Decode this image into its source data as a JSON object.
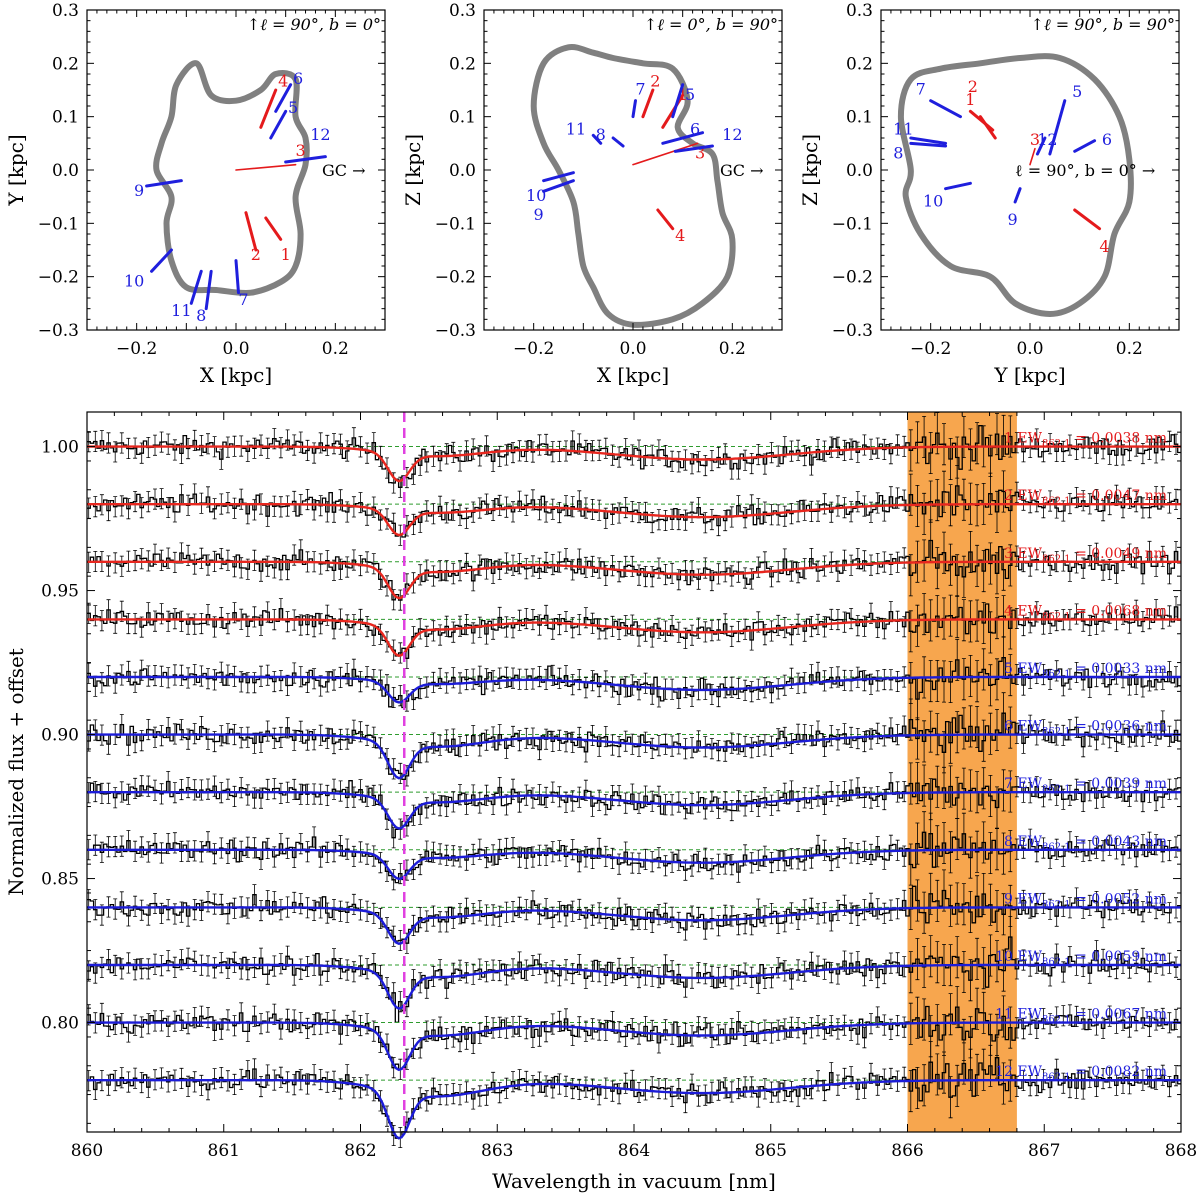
{
  "colors": {
    "red": "#e41a1c",
    "blue": "#1f1fdd",
    "contour": "#808080",
    "model_red": "#e8261e",
    "model_blue": "#1c1cd8",
    "baseline": "#2e9b2e",
    "dashed_center": "#e040e0",
    "highlight": "#f7a64e",
    "data": "#000000"
  },
  "chart_data": [
    {
      "type": "scatter",
      "panel": "top-left",
      "xlabel": "X [kpc]",
      "ylabel": "Y [kpc]",
      "xlim": [
        -0.3,
        0.3
      ],
      "ylim": [
        -0.3,
        0.3
      ],
      "xticks": [
        "−0.2",
        "0.0",
        "0.2"
      ],
      "yticks": [
        "−0.3",
        "−0.2",
        "−0.1",
        "0.0",
        "0.1",
        "0.2",
        "0.3"
      ],
      "corner_label": "↑ℓ = 90°, b = 0°",
      "arrow_label": "GC →",
      "contour": [
        [
          -0.13,
          0.1
        ],
        [
          -0.12,
          0.16
        ],
        [
          -0.08,
          0.2
        ],
        [
          -0.05,
          0.14
        ],
        [
          0.0,
          0.13
        ],
        [
          0.05,
          0.15
        ],
        [
          0.08,
          0.18
        ],
        [
          0.12,
          0.17
        ],
        [
          0.12,
          0.1
        ],
        [
          0.14,
          0.06
        ],
        [
          0.14,
          0.01
        ],
        [
          0.12,
          -0.05
        ],
        [
          0.13,
          -0.12
        ],
        [
          0.12,
          -0.18
        ],
        [
          0.09,
          -0.21
        ],
        [
          0.03,
          -0.23
        ],
        [
          -0.04,
          -0.225
        ],
        [
          -0.1,
          -0.22
        ],
        [
          -0.13,
          -0.17
        ],
        [
          -0.14,
          -0.1
        ],
        [
          -0.13,
          -0.05
        ],
        [
          -0.16,
          0.0
        ],
        [
          -0.15,
          0.05
        ]
      ],
      "sightlines": [
        {
          "label": "1",
          "color": "red",
          "x": [
            0.06,
            0.09
          ],
          "y": [
            -0.09,
            -0.13
          ],
          "lx": 0.1,
          "ly": -0.16
        },
        {
          "label": "2",
          "color": "red",
          "x": [
            0.02,
            0.04
          ],
          "y": [
            -0.08,
            -0.15
          ],
          "lx": 0.04,
          "ly": -0.16
        },
        {
          "label": "3",
          "color": "red",
          "x": [
            0.0,
            0.12
          ],
          "y": [
            0.0,
            0.01
          ],
          "lx": 0.13,
          "ly": 0.035
        },
        {
          "label": "4",
          "color": "red",
          "x": [
            0.05,
            0.08
          ],
          "y": [
            0.08,
            0.15
          ],
          "lx": 0.095,
          "ly": 0.165
        },
        {
          "label": "5",
          "color": "blue",
          "x": [
            0.07,
            0.1
          ],
          "y": [
            0.06,
            0.11
          ],
          "lx": 0.115,
          "ly": 0.115
        },
        {
          "label": "6",
          "color": "blue",
          "x": [
            0.08,
            0.11
          ],
          "y": [
            0.11,
            0.16
          ],
          "lx": 0.125,
          "ly": 0.17
        },
        {
          "label": "7",
          "color": "blue",
          "x": [
            0.0,
            0.005
          ],
          "y": [
            -0.17,
            -0.23
          ],
          "lx": 0.015,
          "ly": -0.245
        },
        {
          "label": "8",
          "color": "blue",
          "x": [
            -0.05,
            -0.06
          ],
          "y": [
            -0.19,
            -0.26
          ],
          "lx": -0.07,
          "ly": -0.275
        },
        {
          "label": "9",
          "color": "blue",
          "x": [
            -0.11,
            -0.18
          ],
          "y": [
            -0.02,
            -0.03
          ],
          "lx": -0.195,
          "ly": -0.04
        },
        {
          "label": "10",
          "color": "blue",
          "x": [
            -0.13,
            -0.17
          ],
          "y": [
            -0.15,
            -0.19
          ],
          "lx": -0.205,
          "ly": -0.21
        },
        {
          "label": "11",
          "color": "blue",
          "x": [
            -0.07,
            -0.09
          ],
          "y": [
            -0.19,
            -0.25
          ],
          "lx": -0.11,
          "ly": -0.265
        },
        {
          "label": "12",
          "color": "blue",
          "x": [
            0.1,
            0.18
          ],
          "y": [
            0.015,
            0.025
          ],
          "lx": 0.17,
          "ly": 0.065
        }
      ]
    },
    {
      "type": "scatter",
      "panel": "top-middle",
      "xlabel": "X [kpc]",
      "ylabel": "Z [kpc]",
      "xlim": [
        -0.3,
        0.3
      ],
      "ylim": [
        -0.3,
        0.3
      ],
      "xticks": [
        "−0.2",
        "0.0",
        "0.2"
      ],
      "yticks": [
        "−0.3",
        "−0.2",
        "−0.1",
        "0.0",
        "0.1",
        "0.2",
        "0.3"
      ],
      "corner_label": "↑ℓ = 0°, b = 90°",
      "arrow_label": "GC →",
      "contour": [
        [
          -0.18,
          0.05
        ],
        [
          -0.2,
          0.12
        ],
        [
          -0.18,
          0.2
        ],
        [
          -0.13,
          0.23
        ],
        [
          -0.08,
          0.22
        ],
        [
          -0.04,
          0.21
        ],
        [
          0.02,
          0.2
        ],
        [
          0.08,
          0.19
        ],
        [
          0.11,
          0.13
        ],
        [
          0.09,
          0.08
        ],
        [
          0.12,
          0.05
        ],
        [
          0.16,
          0.03
        ],
        [
          0.17,
          -0.02
        ],
        [
          0.18,
          -0.08
        ],
        [
          0.2,
          -0.13
        ],
        [
          0.19,
          -0.2
        ],
        [
          0.14,
          -0.25
        ],
        [
          0.08,
          -0.28
        ],
        [
          0.0,
          -0.29
        ],
        [
          -0.05,
          -0.27
        ],
        [
          -0.08,
          -0.22
        ],
        [
          -0.1,
          -0.18
        ],
        [
          -0.11,
          -0.12
        ],
        [
          -0.12,
          -0.06
        ],
        [
          -0.15,
          0.0
        ]
      ],
      "sightlines": [
        {
          "label": "1",
          "color": "red",
          "x": [
            0.06,
            0.1
          ],
          "y": [
            0.08,
            0.14
          ],
          "lx": 0.1,
          "ly": 0.14
        },
        {
          "label": "2",
          "color": "red",
          "x": [
            0.02,
            0.04
          ],
          "y": [
            0.1,
            0.15
          ],
          "lx": 0.045,
          "ly": 0.165
        },
        {
          "label": "3",
          "color": "red",
          "x": [
            0.0,
            0.13
          ],
          "y": [
            0.01,
            0.05
          ],
          "lx": 0.135,
          "ly": 0.03
        },
        {
          "label": "4",
          "color": "red",
          "x": [
            0.05,
            0.08
          ],
          "y": [
            -0.075,
            -0.11
          ],
          "lx": 0.095,
          "ly": -0.125
        },
        {
          "label": "5",
          "color": "blue",
          "x": [
            0.08,
            0.1
          ],
          "y": [
            0.1,
            0.16
          ],
          "lx": 0.115,
          "ly": 0.14
        },
        {
          "label": "6",
          "color": "blue",
          "x": [
            0.085,
            0.16
          ],
          "y": [
            0.035,
            0.045
          ],
          "lx": 0.125,
          "ly": 0.075
        },
        {
          "label": "7",
          "color": "blue",
          "x": [
            0.0,
            0.005
          ],
          "y": [
            0.1,
            0.13
          ],
          "lx": 0.015,
          "ly": 0.15
        },
        {
          "label": "8",
          "color": "blue",
          "x": [
            -0.04,
            -0.02
          ],
          "y": [
            0.06,
            0.045
          ],
          "lx": -0.065,
          "ly": 0.065
        },
        {
          "label": "9",
          "color": "blue",
          "x": [
            -0.12,
            -0.18
          ],
          "y": [
            -0.02,
            -0.04
          ],
          "lx": -0.19,
          "ly": -0.085
        },
        {
          "label": "10",
          "color": "blue",
          "x": [
            -0.12,
            -0.18
          ],
          "y": [
            -0.005,
            -0.02
          ],
          "lx": -0.195,
          "ly": -0.05
        },
        {
          "label": "11",
          "color": "blue",
          "x": [
            -0.08,
            -0.065
          ],
          "y": [
            0.065,
            0.05
          ],
          "lx": -0.115,
          "ly": 0.075
        },
        {
          "label": "12",
          "color": "blue",
          "x": [
            0.06,
            0.14
          ],
          "y": [
            0.05,
            0.07
          ],
          "lx": 0.2,
          "ly": 0.065
        }
      ]
    },
    {
      "type": "scatter",
      "panel": "top-right",
      "xlabel": "Y [kpc]",
      "ylabel": "Z [kpc]",
      "xlim": [
        -0.3,
        0.3
      ],
      "ylim": [
        -0.3,
        0.3
      ],
      "xticks": [
        "−0.2",
        "0.0",
        "0.2"
      ],
      "yticks": [
        "−0.3",
        "−0.2",
        "−0.1",
        "0.0",
        "0.1",
        "0.2",
        "0.3"
      ],
      "corner_label": "↑ℓ = 90°, b = 90°",
      "arrow_label": "ℓ = 90°,  b = 0° →",
      "contour": [
        [
          -0.24,
          0.0
        ],
        [
          -0.26,
          0.1
        ],
        [
          -0.24,
          0.17
        ],
        [
          -0.18,
          0.19
        ],
        [
          -0.1,
          0.2
        ],
        [
          -0.02,
          0.21
        ],
        [
          0.06,
          0.21
        ],
        [
          0.13,
          0.17
        ],
        [
          0.18,
          0.1
        ],
        [
          0.2,
          0.02
        ],
        [
          0.2,
          -0.06
        ],
        [
          0.17,
          -0.12
        ],
        [
          0.15,
          -0.2
        ],
        [
          0.1,
          -0.25
        ],
        [
          0.04,
          -0.27
        ],
        [
          -0.03,
          -0.25
        ],
        [
          -0.08,
          -0.2
        ],
        [
          -0.16,
          -0.18
        ],
        [
          -0.22,
          -0.12
        ],
        [
          -0.25,
          -0.05
        ]
      ],
      "sightlines": [
        {
          "label": "1",
          "color": "red",
          "x": [
            -0.1,
            -0.07
          ],
          "y": [
            0.1,
            0.06
          ],
          "lx": -0.12,
          "ly": 0.13
        },
        {
          "label": "2",
          "color": "red",
          "x": [
            -0.12,
            -0.075
          ],
          "y": [
            0.11,
            0.075
          ],
          "lx": -0.115,
          "ly": 0.155
        },
        {
          "label": "3",
          "color": "red",
          "x": [
            0.0,
            0.01
          ],
          "y": [
            0.01,
            0.04
          ],
          "lx": 0.01,
          "ly": 0.055
        },
        {
          "label": "4",
          "color": "red",
          "x": [
            0.09,
            0.14
          ],
          "y": [
            -0.075,
            -0.11
          ],
          "lx": 0.15,
          "ly": -0.145
        },
        {
          "label": "5",
          "color": "blue",
          "x": [
            0.04,
            0.07
          ],
          "y": [
            0.03,
            0.13
          ],
          "lx": 0.095,
          "ly": 0.145
        },
        {
          "label": "6",
          "color": "blue",
          "x": [
            0.09,
            0.13
          ],
          "y": [
            0.035,
            0.055
          ],
          "lx": 0.155,
          "ly": 0.055
        },
        {
          "label": "7",
          "color": "blue",
          "x": [
            -0.2,
            -0.14
          ],
          "y": [
            0.13,
            0.1
          ],
          "lx": -0.22,
          "ly": 0.15
        },
        {
          "label": "8",
          "color": "blue",
          "x": [
            -0.24,
            -0.17
          ],
          "y": [
            0.05,
            0.045
          ],
          "lx": -0.265,
          "ly": 0.03
        },
        {
          "label": "9",
          "color": "blue",
          "x": [
            -0.03,
            -0.02
          ],
          "y": [
            -0.06,
            -0.035
          ],
          "lx": -0.035,
          "ly": -0.095
        },
        {
          "label": "10",
          "color": "blue",
          "x": [
            -0.17,
            -0.12
          ],
          "y": [
            -0.035,
            -0.025
          ],
          "lx": -0.195,
          "ly": -0.06
        },
        {
          "label": "11",
          "color": "blue",
          "x": [
            -0.24,
            -0.17
          ],
          "y": [
            0.06,
            0.05
          ],
          "lx": -0.255,
          "ly": 0.075
        },
        {
          "label": "12",
          "color": "blue",
          "x": [
            0.015,
            0.03
          ],
          "y": [
            0.03,
            0.06
          ],
          "lx": 0.035,
          "ly": 0.055
        }
      ]
    },
    {
      "type": "line",
      "panel": "bottom",
      "xlabel": "Wavelength in vacuum [nm]",
      "ylabel": "Normalized flux + offset",
      "xlim": [
        860,
        868
      ],
      "ylim": [
        0.762,
        1.012
      ],
      "xticks": [
        "860",
        "861",
        "862",
        "863",
        "864",
        "865",
        "866",
        "867",
        "868"
      ],
      "yticks": [
        {
          "value": 0.8,
          "label": "0.80"
        },
        {
          "value": 0.85,
          "label": "0.85"
        },
        {
          "value": 0.9,
          "label": "0.90"
        },
        {
          "value": 0.95,
          "label": "0.95"
        },
        {
          "value": 1.0,
          "label": "1.00"
        }
      ],
      "vline_center": 862.32,
      "highlight_band": [
        866.0,
        866.8
      ],
      "ew_prefix": "EW",
      "ew_sub": "862.1",
      "ew_unit": "nm",
      "series": [
        {
          "label": "1",
          "color": "red",
          "offset": 1.0,
          "ew": "0.0038",
          "depth": 0.0095
        },
        {
          "label": "2",
          "color": "red",
          "offset": 0.98,
          "ew": "0.0047",
          "depth": 0.0085
        },
        {
          "label": "3",
          "color": "red",
          "offset": 0.96,
          "ew": "0.0049",
          "depth": 0.01
        },
        {
          "label": "4",
          "color": "red",
          "offset": 0.94,
          "ew": "0.0068",
          "depth": 0.01
        },
        {
          "label": "5",
          "color": "blue",
          "offset": 0.92,
          "ew": "0.0033",
          "depth": 0.007
        },
        {
          "label": "6",
          "color": "blue",
          "offset": 0.9,
          "ew": "0.0036",
          "depth": 0.012
        },
        {
          "label": "7",
          "color": "blue",
          "offset": 0.88,
          "ew": "0.0039",
          "depth": 0.01
        },
        {
          "label": "8",
          "color": "blue",
          "offset": 0.86,
          "ew": "0.0043",
          "depth": 0.008
        },
        {
          "label": "9",
          "color": "blue",
          "offset": 0.84,
          "ew": "0.0052",
          "depth": 0.01
        },
        {
          "label": "10",
          "color": "blue",
          "offset": 0.82,
          "ew": "0.0059",
          "depth": 0.012
        },
        {
          "label": "11",
          "color": "blue",
          "offset": 0.8,
          "ew": "0.0067",
          "depth": 0.013
        },
        {
          "label": "12",
          "color": "blue",
          "offset": 0.78,
          "ew": "0.0082",
          "depth": 0.016
        }
      ]
    }
  ]
}
